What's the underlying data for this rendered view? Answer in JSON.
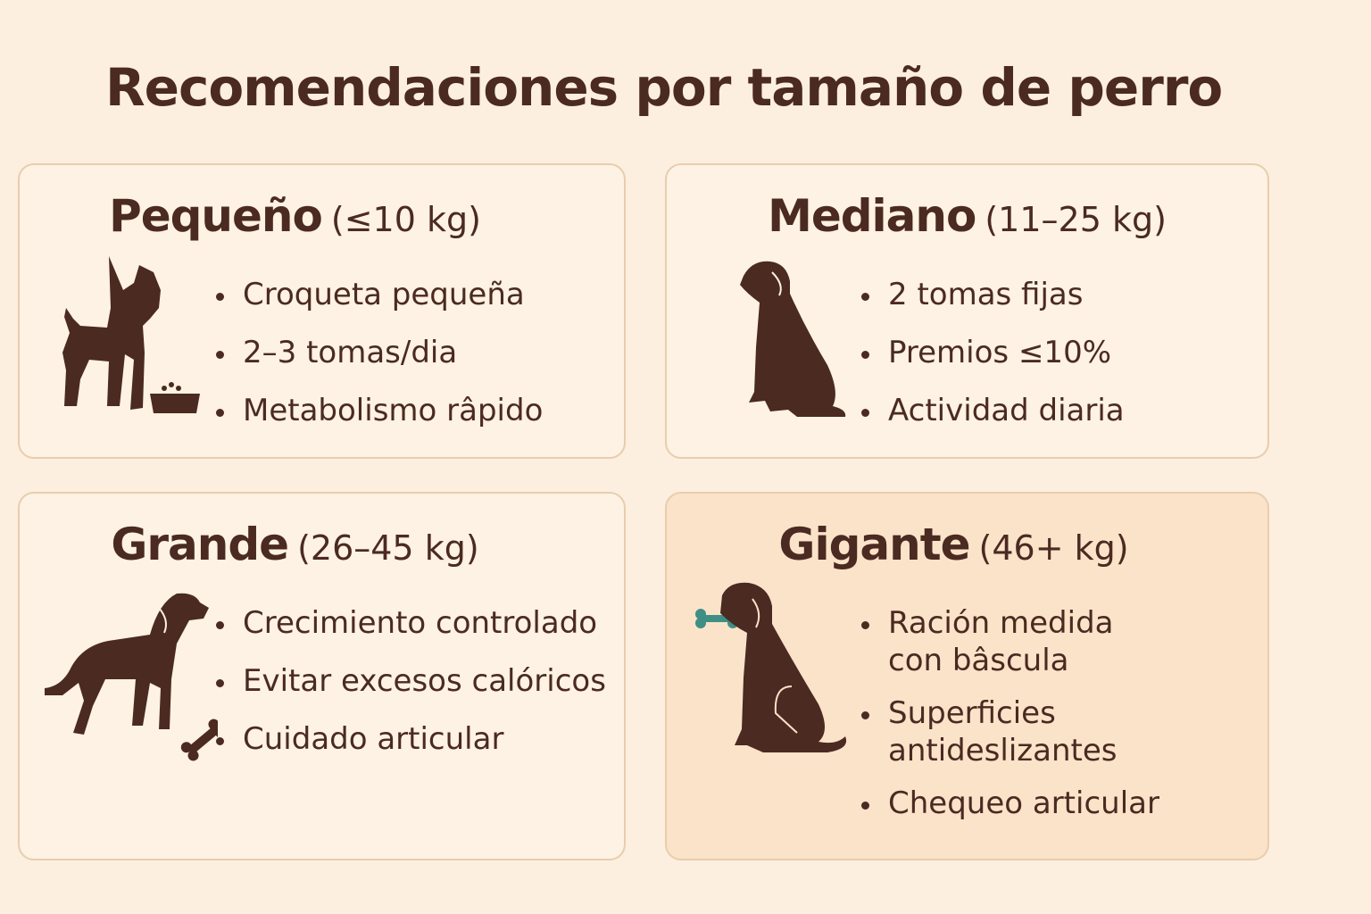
{
  "title": "Recomendaciones por tamaño de perro",
  "colors": {
    "background": "#fcefdf",
    "card": "#fdf2e3",
    "card_highlight": "#fbe3c9",
    "text": "#4b2a22",
    "border": "#e8cdae",
    "bone_accent": "#3f8f86"
  },
  "cards": [
    {
      "name": "Pequeño",
      "range": "(≤10 kg)",
      "icon": "small-dog-standing-with-food-bowl",
      "items": [
        "Croqueta pequeña",
        "2–3 tomas/dia",
        "Metabolismo râpido"
      ]
    },
    {
      "name": "Mediano",
      "range": "(11–25 kg)",
      "icon": "medium-dog-sitting",
      "items": [
        "2 tomas fijas",
        "Premios ≤10%",
        "Actividad diaria"
      ]
    },
    {
      "name": "Grande",
      "range": "(26–45 kg)",
      "icon": "large-dog-standing-with-bone",
      "items": [
        "Crecimiento controlado",
        "Evitar excesos calóricos",
        "Cuidado articular"
      ]
    },
    {
      "name": "Gigante",
      "range": "(46+ kg)",
      "icon": "giant-dog-sitting-with-bone",
      "highlighted": true,
      "items": [
        "Ración medida\ncon bâscula",
        "Superficies\nantideslizantes",
        "Chequeo articular"
      ]
    }
  ]
}
